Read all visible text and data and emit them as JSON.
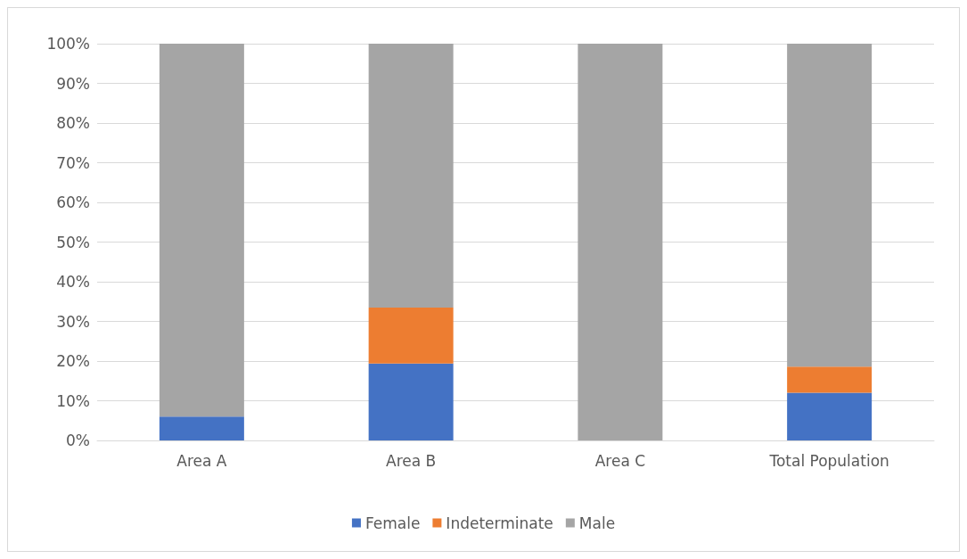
{
  "chart_data": {
    "type": "bar",
    "stacked": true,
    "categories": [
      "Area A",
      "Area B",
      "Area C",
      "Total Population"
    ],
    "series": [
      {
        "name": "Female",
        "color": "#4472c4",
        "values": [
          6.0,
          19.4,
          0,
          12.0
        ]
      },
      {
        "name": "Indeterminate",
        "color": "#ed7d31",
        "values": [
          0,
          14.1,
          0,
          6.6
        ]
      },
      {
        "name": "Male",
        "color": "#a5a5a5",
        "values": [
          94.0,
          66.5,
          100,
          81.4
        ]
      }
    ],
    "ylim": [
      0,
      100
    ],
    "yticks": [
      {
        "value": 0,
        "label": "0%"
      },
      {
        "value": 10,
        "label": "10%"
      },
      {
        "value": 20,
        "label": "20%"
      },
      {
        "value": 30,
        "label": "30%"
      },
      {
        "value": 40,
        "label": "40%"
      },
      {
        "value": 50,
        "label": "50%"
      },
      {
        "value": 60,
        "label": "60%"
      },
      {
        "value": 70,
        "label": "70%"
      },
      {
        "value": 80,
        "label": "80%"
      },
      {
        "value": 90,
        "label": "90%"
      },
      {
        "value": 100,
        "label": "100%"
      }
    ],
    "grid": "y",
    "legend": "bottom"
  }
}
